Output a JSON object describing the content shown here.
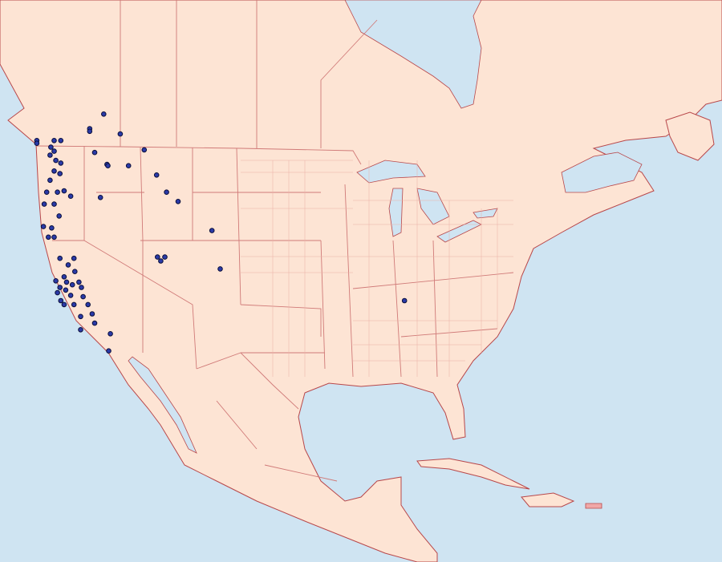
{
  "map": {
    "colors": {
      "ocean": "#cfe4f2",
      "land": "#fde4d4",
      "coast": "#b8474a",
      "border": "#d07a78",
      "highlight": "#f0a8a8",
      "point": "#2a3aa8"
    },
    "occurrence_points": [
      [
        50.5,
        -118.0
      ],
      [
        50.3,
        -118.0
      ],
      [
        51.6,
        -116.3
      ],
      [
        49.6,
        -124.4
      ],
      [
        49.4,
        -124.4
      ],
      [
        49.1,
        -122.7
      ],
      [
        48.8,
        -122.3
      ],
      [
        49.6,
        -121.5
      ],
      [
        49.6,
        -122.3
      ],
      [
        48.5,
        -122.8
      ],
      [
        48.1,
        -122.1
      ],
      [
        47.9,
        -121.5
      ],
      [
        47.3,
        -122.3
      ],
      [
        47.1,
        -121.6
      ],
      [
        48.7,
        -117.4
      ],
      [
        47.8,
        -115.9
      ],
      [
        47.7,
        -115.8
      ],
      [
        47.7,
        -113.3
      ],
      [
        48.9,
        -111.4
      ],
      [
        50.1,
        -114.3
      ],
      [
        47.0,
        -109.9
      ],
      [
        45.7,
        -108.7
      ],
      [
        45.0,
        -107.3
      ],
      [
        45.3,
        -116.7
      ],
      [
        46.6,
        -122.8
      ],
      [
        45.7,
        -123.2
      ],
      [
        45.7,
        -121.9
      ],
      [
        45.8,
        -121.1
      ],
      [
        45.4,
        -120.3
      ],
      [
        44.8,
        -122.3
      ],
      [
        44.8,
        -123.5
      ],
      [
        43.9,
        -121.7
      ],
      [
        43.1,
        -123.6
      ],
      [
        42.3,
        -123.0
      ],
      [
        42.3,
        -122.3
      ],
      [
        43.0,
        -122.6
      ],
      [
        42.8,
        -103.2
      ],
      [
        40.8,
        -109.8
      ],
      [
        40.8,
        -108.9
      ],
      [
        40.5,
        -109.4
      ],
      [
        39.9,
        -102.2
      ],
      [
        40.7,
        -121.6
      ],
      [
        40.2,
        -120.6
      ],
      [
        40.7,
        -119.9
      ],
      [
        39.7,
        -119.8
      ],
      [
        39.3,
        -121.1
      ],
      [
        39.0,
        -122.1
      ],
      [
        38.5,
        -121.6
      ],
      [
        38.3,
        -120.9
      ],
      [
        38.7,
        -120.1
      ],
      [
        38.9,
        -119.3
      ],
      [
        38.5,
        -119.0
      ],
      [
        37.9,
        -120.3
      ],
      [
        37.5,
        -121.5
      ],
      [
        37.2,
        -121.1
      ],
      [
        37.2,
        -119.9
      ],
      [
        37.8,
        -118.8
      ],
      [
        37.2,
        -118.2
      ],
      [
        36.5,
        -117.7
      ],
      [
        36.3,
        -119.1
      ],
      [
        35.8,
        -117.4
      ],
      [
        35.0,
        -115.5
      ],
      [
        35.3,
        -119.1
      ],
      [
        33.7,
        -115.7
      ],
      [
        37.5,
        -79.9
      ],
      [
        38.1,
        -121.9
      ],
      [
        38.9,
        -120.8
      ]
    ]
  }
}
